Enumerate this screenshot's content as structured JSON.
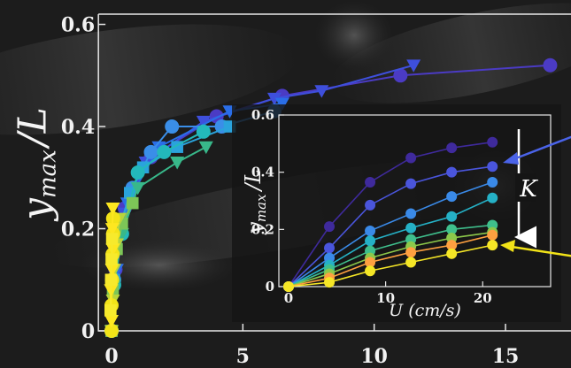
{
  "chart_data": [
    {
      "type": "scatter",
      "title": "",
      "xlabel": "",
      "ylabel": "y_max / L",
      "ylabel_parts": {
        "base": "y",
        "sub": "max",
        "rest": "/L"
      },
      "xlim": [
        -0.5,
        17.5
      ],
      "ylim": [
        0,
        0.62
      ],
      "xticks": [
        0,
        5,
        10,
        15
      ],
      "yticks": [
        0,
        0.2,
        0.4,
        0.6
      ],
      "ytick_labels": [
        "0",
        "0.2",
        "0.4",
        "0.6"
      ],
      "grid": false,
      "series": [
        {
          "marker": "circle",
          "color": "#4b3bc4",
          "x": [
            0,
            0.15,
            0.5,
            1.5,
            4,
            6.5,
            11,
            16.7
          ],
          "y": [
            0,
            0.12,
            0.24,
            0.34,
            0.42,
            0.46,
            0.5,
            0.52
          ]
        },
        {
          "marker": "triangle",
          "color": "#3e4fdc",
          "x": [
            0,
            0.15,
            0.5,
            1.3,
            3.5,
            6.2,
            8,
            11.5
          ],
          "y": [
            0,
            0.11,
            0.23,
            0.33,
            0.41,
            0.455,
            0.47,
            0.52
          ]
        },
        {
          "marker": "triangle",
          "color": "#2a6ee8",
          "x": [
            0,
            0.2,
            0.6,
            1.8,
            4.5,
            6.5
          ],
          "y": [
            0,
            0.12,
            0.25,
            0.36,
            0.43,
            0.445
          ]
        },
        {
          "marker": "circle",
          "color": "#3a8ee8",
          "x": [
            0,
            0.1,
            0.3,
            0.8,
            1.5,
            2.3,
            4.2,
            6.2
          ],
          "y": [
            0,
            0.1,
            0.2,
            0.28,
            0.35,
            0.4,
            0.4,
            0.43
          ]
        },
        {
          "marker": "square",
          "color": "#2aa3dc",
          "x": [
            0,
            0.1,
            0.3,
            0.7,
            1.2,
            2.5,
            4.5
          ],
          "y": [
            0,
            0.1,
            0.2,
            0.27,
            0.32,
            0.36,
            0.4
          ]
        },
        {
          "marker": "circle",
          "color": "#23b8bb",
          "x": [
            0,
            0.1,
            0.4,
            1,
            2,
            3.5
          ],
          "y": [
            0,
            0.09,
            0.19,
            0.31,
            0.35,
            0.39
          ]
        },
        {
          "marker": "triangle",
          "color": "#38b88a",
          "x": [
            0,
            0.1,
            0.4,
            1,
            2.5,
            3.6
          ],
          "y": [
            0,
            0.09,
            0.19,
            0.28,
            0.33,
            0.36
          ]
        },
        {
          "marker": "square",
          "color": "#7dc657",
          "x": [
            0,
            0.05,
            0.2,
            0.4,
            0.8
          ],
          "y": [
            0,
            0.08,
            0.16,
            0.21,
            0.25
          ]
        },
        {
          "marker": "triangle",
          "color": "#b8d43c",
          "x": [
            0,
            0.05,
            0.1,
            0.2,
            0.3
          ],
          "y": [
            0,
            0.06,
            0.12,
            0.17,
            0.22
          ]
        },
        {
          "marker": "circle",
          "color": "#f2e318",
          "x": [
            0,
            0,
            0.02,
            0.04,
            0.06,
            0.06
          ],
          "y": [
            0,
            0.05,
            0.1,
            0.15,
            0.19,
            0.22
          ]
        },
        {
          "marker": "triangle",
          "color": "#fde720",
          "x": [
            0,
            -0.02,
            0.02,
            0.05,
            0.03,
            0.05
          ],
          "y": [
            0.02,
            0.08,
            0.12,
            0.16,
            0.2,
            0.24
          ]
        },
        {
          "marker": "square",
          "color": "#f7ea2c",
          "x": [
            -0.04,
            -0.02,
            0,
            0.02
          ],
          "y": [
            0.04,
            0.1,
            0.14,
            0.18
          ]
        }
      ]
    },
    {
      "type": "line",
      "title": "",
      "xlabel": "U (cm/s)",
      "ylabel": "y_max / L",
      "ylabel_parts": {
        "base": "y",
        "sub": "max",
        "rest": "/L"
      },
      "xlim": [
        -1,
        27
      ],
      "ylim": [
        0,
        0.6
      ],
      "xticks": [
        0,
        10,
        20
      ],
      "yticks": [
        0,
        0.2,
        0.4,
        0.6
      ],
      "ytick_labels": [
        "0",
        "0.2",
        "0.4",
        "0.6"
      ],
      "grid": false,
      "annotation": "K",
      "x": [
        0,
        4.2,
        8.4,
        12.6,
        16.8,
        21
      ],
      "series": [
        {
          "color": "#3f2a9c",
          "values": [
            0,
            0.21,
            0.365,
            0.45,
            0.485,
            0.505
          ]
        },
        {
          "color": "#4a55dc",
          "values": [
            0,
            0.135,
            0.285,
            0.36,
            0.4,
            0.42
          ]
        },
        {
          "color": "#3a8ae8",
          "values": [
            0,
            0.1,
            0.195,
            0.255,
            0.315,
            0.365
          ]
        },
        {
          "color": "#25b1c6",
          "values": [
            0,
            0.075,
            0.16,
            0.205,
            0.245,
            0.31
          ]
        },
        {
          "color": "#3fbf8c",
          "values": [
            0,
            0.06,
            0.125,
            0.165,
            0.2,
            0.215
          ]
        },
        {
          "color": "#8cc84a",
          "values": [
            0,
            0.045,
            0.1,
            0.14,
            0.17,
            0.19
          ]
        },
        {
          "color": "#ffa040",
          "values": [
            0,
            0.03,
            0.085,
            0.12,
            0.145,
            0.18
          ]
        },
        {
          "color": "#f5e626",
          "values": [
            0,
            0.015,
            0.055,
            0.085,
            0.115,
            0.145
          ]
        }
      ]
    }
  ]
}
